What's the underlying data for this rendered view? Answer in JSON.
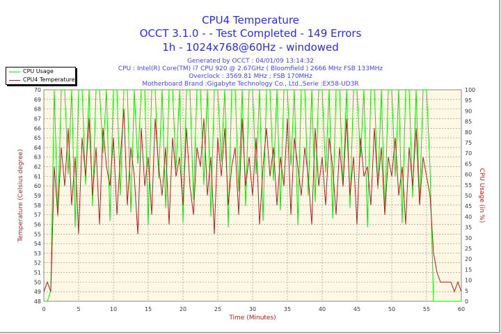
{
  "title": "CPU4 Temperature",
  "subtitle1": "OCCT 3.1.0 -  - Test Completed - 149 Errors",
  "subtitle2": "1h - 1024x768@60Hz - windowed",
  "info": [
    "Generated by OCCT : 04/01/09 13:14:32",
    "CPU : Intel(R) Core(TM) i7 CPU 920 @ 2.67GHz ( Bloomfield ) 2666 MHz FSB 133MHz",
    "Overclock : 3569.81 MHz ; FSB 170MHz",
    "Motherboard Brand :Gigabyte Technology Co., Ltd.,Serie :EX58-UD3R"
  ],
  "chart_data": {
    "type": "line",
    "xlabel": "Time (Minutes)",
    "ylabel": "Temperature (Celsius degree)",
    "y2label": "CPU Usage (in %)",
    "xlim": [
      0,
      60
    ],
    "ylim": [
      48,
      70
    ],
    "y2lim": [
      0,
      100
    ],
    "xticks": [
      0,
      5,
      10,
      15,
      20,
      25,
      30,
      35,
      40,
      45,
      50,
      55,
      60
    ],
    "yticks": [
      48,
      49,
      50,
      51,
      52,
      53,
      54,
      55,
      56,
      57,
      58,
      59,
      60,
      61,
      62,
      63,
      64,
      65,
      66,
      67,
      68,
      69,
      70
    ],
    "y2ticks": [
      0,
      5,
      10,
      15,
      20,
      25,
      30,
      35,
      40,
      45,
      50,
      55,
      60,
      65,
      70,
      75,
      80,
      85,
      90,
      95,
      100
    ],
    "grid": true,
    "legend": "top-left",
    "colors": {
      "cpu_usage": "#00ee00",
      "temperature": "#b02020",
      "background": "#fdf7e4"
    },
    "x_step": 0.5,
    "series": [
      {
        "name": "CPU Usage",
        "axis": "right",
        "values": [
          0,
          0,
          5,
          100,
          40,
          100,
          100,
          60,
          100,
          35,
          100,
          100,
          55,
          100,
          45,
          100,
          100,
          70,
          100,
          38,
          100,
          100,
          50,
          100,
          100,
          42,
          100,
          65,
          100,
          100,
          36,
          100,
          100,
          58,
          100,
          44,
          100,
          100,
          62,
          100,
          37,
          100,
          100,
          48,
          100,
          100,
          55,
          100,
          40,
          100,
          100,
          66,
          100,
          35,
          100,
          100,
          52,
          100,
          45,
          100,
          100,
          60,
          100,
          38,
          100,
          100,
          57,
          100,
          43,
          100,
          100,
          64,
          100,
          36,
          100,
          100,
          50,
          100,
          47,
          100,
          100,
          61,
          100,
          39,
          100,
          100,
          54,
          100,
          44,
          100,
          100,
          68,
          100,
          35,
          100,
          100,
          53,
          100,
          41,
          100,
          100,
          59,
          100,
          37,
          100,
          100,
          49,
          100,
          46,
          100,
          100,
          63,
          0,
          0,
          0,
          0,
          0,
          0,
          0,
          0,
          0
        ]
      },
      {
        "name": "CPU4 Temperature",
        "axis": "left",
        "values": [
          49,
          50,
          49,
          62,
          57,
          64,
          60,
          66,
          58,
          63,
          55,
          65,
          61,
          67,
          59,
          64,
          56,
          66,
          62,
          60,
          65,
          57,
          63,
          68,
          58,
          64,
          61,
          55,
          66,
          60,
          63,
          57,
          67,
          62,
          59,
          64,
          56,
          65,
          61,
          63,
          58,
          66,
          60,
          57,
          64,
          62,
          67,
          59,
          63,
          55,
          65,
          61,
          66,
          58,
          62,
          64,
          57,
          67,
          60,
          63,
          59,
          65,
          56,
          62,
          66,
          61,
          64,
          58,
          63,
          60,
          67,
          57,
          65,
          62,
          59,
          64,
          61,
          56,
          66,
          60,
          63,
          58,
          65,
          62,
          57,
          64,
          60,
          67,
          59,
          63,
          56,
          65,
          61,
          62,
          58,
          66,
          60,
          64,
          57,
          63,
          61,
          65,
          59,
          62,
          56,
          64,
          60,
          66,
          58,
          63,
          61,
          59,
          53,
          51,
          50,
          50,
          50,
          50,
          49,
          50,
          49
        ]
      }
    ]
  }
}
